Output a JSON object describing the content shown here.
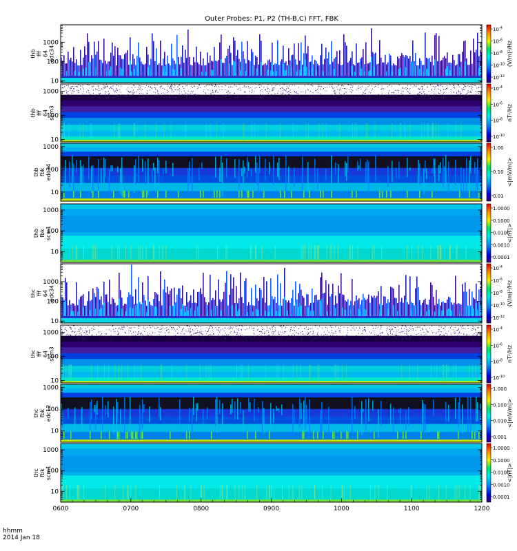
{
  "chart_data": {
    "type": "heatmap",
    "title": "Outer Probes: P1, P2 (TH-B,C) FFT, FBK",
    "x_axis": {
      "tick_labels": [
        "0600",
        "0700",
        "0800",
        "0900",
        "1000",
        "1100",
        "1200"
      ],
      "range": [
        "06:00",
        "12:00"
      ],
      "footer_line1": "hhmm",
      "footer_line2": "2014 Jan 18"
    },
    "panels": [
      {
        "label_lines": [
          "thb",
          "fff",
          "64",
          "edc34"
        ],
        "style": "fff_e",
        "y_ticks": [
          "10",
          "100",
          "1000"
        ],
        "y_range_hz": [
          8,
          8000
        ],
        "colorbar": {
          "ticks": [
            {
              "label": "10",
              "exp": "-4"
            },
            {
              "label": "10",
              "exp": "-6"
            },
            {
              "label": "10",
              "exp": "-8"
            },
            {
              "label": "10",
              "exp": "-10"
            },
            {
              "label": "10",
              "exp": "-12"
            }
          ],
          "unit": "(V/m)²/Hz"
        }
      },
      {
        "label_lines": [
          "thb",
          "fff",
          "64",
          "scm3"
        ],
        "style": "fff_b",
        "y_ticks": [
          "10",
          "100",
          "1000"
        ],
        "y_range_hz": [
          8,
          2000
        ],
        "colorbar": {
          "ticks": [
            {
              "label": "10",
              "exp": "-4"
            },
            {
              "label": "10",
              "exp": "-6"
            },
            {
              "label": "10",
              "exp": "-8"
            },
            {
              "label": "10",
              "exp": "-10"
            }
          ],
          "unit": "nT²/Hz"
        }
      },
      {
        "label_lines": [
          "thb",
          "fbk",
          "edc34"
        ],
        "style": "fbk_e",
        "y_ticks": [
          "10",
          "100",
          "1000"
        ],
        "y_range_hz": [
          4,
          1400
        ],
        "colorbar": {
          "ticks": [
            {
              "label": "1.00",
              "exp": ""
            },
            {
              "label": "0.10",
              "exp": ""
            },
            {
              "label": "0.01",
              "exp": ""
            }
          ],
          "unit": "<|mV/m|>"
        }
      },
      {
        "label_lines": [
          "thb",
          "fbk",
          "scm1"
        ],
        "style": "fbk_b",
        "y_ticks": [
          "10",
          "100",
          "1000"
        ],
        "y_range_hz": [
          3,
          2000
        ],
        "colorbar": {
          "ticks": [
            {
              "label": "1.0000",
              "exp": ""
            },
            {
              "label": "0.1000",
              "exp": ""
            },
            {
              "label": "0.0100",
              "exp": ""
            },
            {
              "label": "0.0010",
              "exp": ""
            },
            {
              "label": "0.0001",
              "exp": ""
            }
          ],
          "unit": "<|nT|>"
        }
      },
      {
        "label_lines": [
          "thc",
          "fff",
          "64",
          "edc34"
        ],
        "style": "fff_e",
        "y_ticks": [
          "10",
          "100",
          "1000"
        ],
        "y_range_hz": [
          8,
          8000
        ],
        "colorbar": {
          "ticks": [
            {
              "label": "10",
              "exp": "-4"
            },
            {
              "label": "10",
              "exp": "-6"
            },
            {
              "label": "10",
              "exp": "-8"
            },
            {
              "label": "10",
              "exp": "-10"
            },
            {
              "label": "10",
              "exp": "-12"
            }
          ],
          "unit": "(V/m)²/Hz"
        }
      },
      {
        "label_lines": [
          "thc",
          "fff",
          "64",
          "scm3"
        ],
        "style": "fff_b",
        "y_ticks": [
          "10",
          "100",
          "1000"
        ],
        "y_range_hz": [
          8,
          2000
        ],
        "colorbar": {
          "ticks": [
            {
              "label": "10",
              "exp": "-4"
            },
            {
              "label": "10",
              "exp": "-6"
            },
            {
              "label": "10",
              "exp": "-8"
            },
            {
              "label": "10",
              "exp": "-10"
            }
          ],
          "unit": "nT²/Hz"
        }
      },
      {
        "label_lines": [
          "thc",
          "fbk",
          "edc12"
        ],
        "style": "fbk_e",
        "y_ticks": [
          "10",
          "100",
          "1000"
        ],
        "y_range_hz": [
          3,
          1400
        ],
        "colorbar": {
          "ticks": [
            {
              "label": "1.000",
              "exp": ""
            },
            {
              "label": "0.100",
              "exp": ""
            },
            {
              "label": "0.010",
              "exp": ""
            },
            {
              "label": "0.001",
              "exp": ""
            }
          ],
          "unit": "<|mV/m|>"
        }
      },
      {
        "label_lines": [
          "thc",
          "fbk",
          "scm1"
        ],
        "style": "fbk_b",
        "y_ticks": [
          "10",
          "100",
          "1000"
        ],
        "y_range_hz": [
          3,
          2000
        ],
        "colorbar": {
          "ticks": [
            {
              "label": "1.0000",
              "exp": ""
            },
            {
              "label": "0.1000",
              "exp": ""
            },
            {
              "label": "0.0100",
              "exp": ""
            },
            {
              "label": "0.0010",
              "exp": ""
            },
            {
              "label": "0.0001",
              "exp": ""
            }
          ],
          "unit": "<|nT|>"
        }
      }
    ]
  }
}
